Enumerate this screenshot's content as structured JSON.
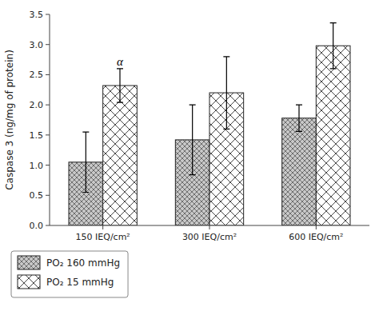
{
  "chart_data": {
    "type": "bar",
    "y_label": "Caspase 3 (ng/mg of protein)",
    "categories": [
      "150 IEQ/cm²",
      "300 IEQ/cm²",
      "600 IEQ/cm²"
    ],
    "series": [
      {
        "name": "PO₂ 160 mmHg",
        "color": "#c8c8c8",
        "values": [
          1.05,
          1.42,
          1.78
        ],
        "errors": [
          0.5,
          0.58,
          0.22
        ]
      },
      {
        "name": "PO₂ 15 mmHg",
        "color": "#ffffff",
        "values": [
          2.32,
          2.2,
          2.98
        ],
        "errors": [
          0.28,
          0.6,
          0.38
        ]
      }
    ],
    "annotations": [
      {
        "text": "α",
        "category": "150 IEQ/cm²",
        "series": "PO₂ 15 mmHg",
        "y": 2.62
      }
    ],
    "ylim": [
      0,
      3.5
    ],
    "yticks": [
      {
        "value": 0.0,
        "label": "0.0"
      },
      0.5,
      {
        "value": 1.0,
        "label": "1.0"
      },
      1.5,
      {
        "value": 2.0,
        "label": "2.0"
      },
      2.5,
      {
        "value": 3.0,
        "label": "3.0"
      },
      3.5
    ],
    "grid": false,
    "legend": "bottom"
  }
}
